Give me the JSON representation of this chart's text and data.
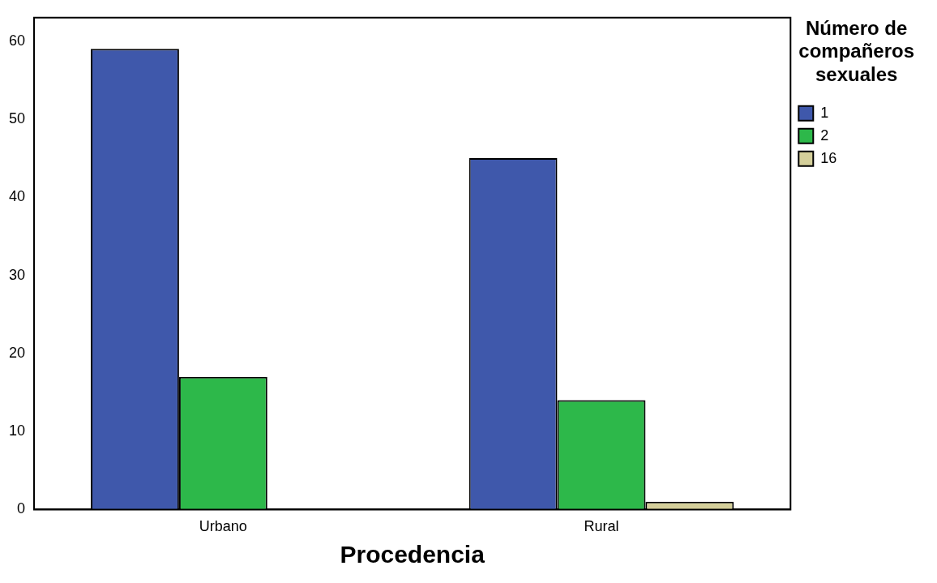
{
  "chart_data": {
    "type": "bar",
    "xlabel": "Procedencia",
    "legend_title": "Número de compañeros sexuales",
    "categories": [
      "Urbano",
      "Rural"
    ],
    "series": [
      {
        "name": "1",
        "color": "#3f58ab",
        "values": [
          59,
          45
        ]
      },
      {
        "name": "2",
        "color": "#2db84a",
        "values": [
          17,
          14
        ]
      },
      {
        "name": "16",
        "color": "#d4cf9a",
        "values": [
          0,
          1
        ]
      }
    ],
    "ylim": [
      0,
      63
    ],
    "yticks": [
      0,
      10,
      20,
      30,
      40,
      50,
      60
    ],
    "grid": false,
    "legend": "top right"
  }
}
